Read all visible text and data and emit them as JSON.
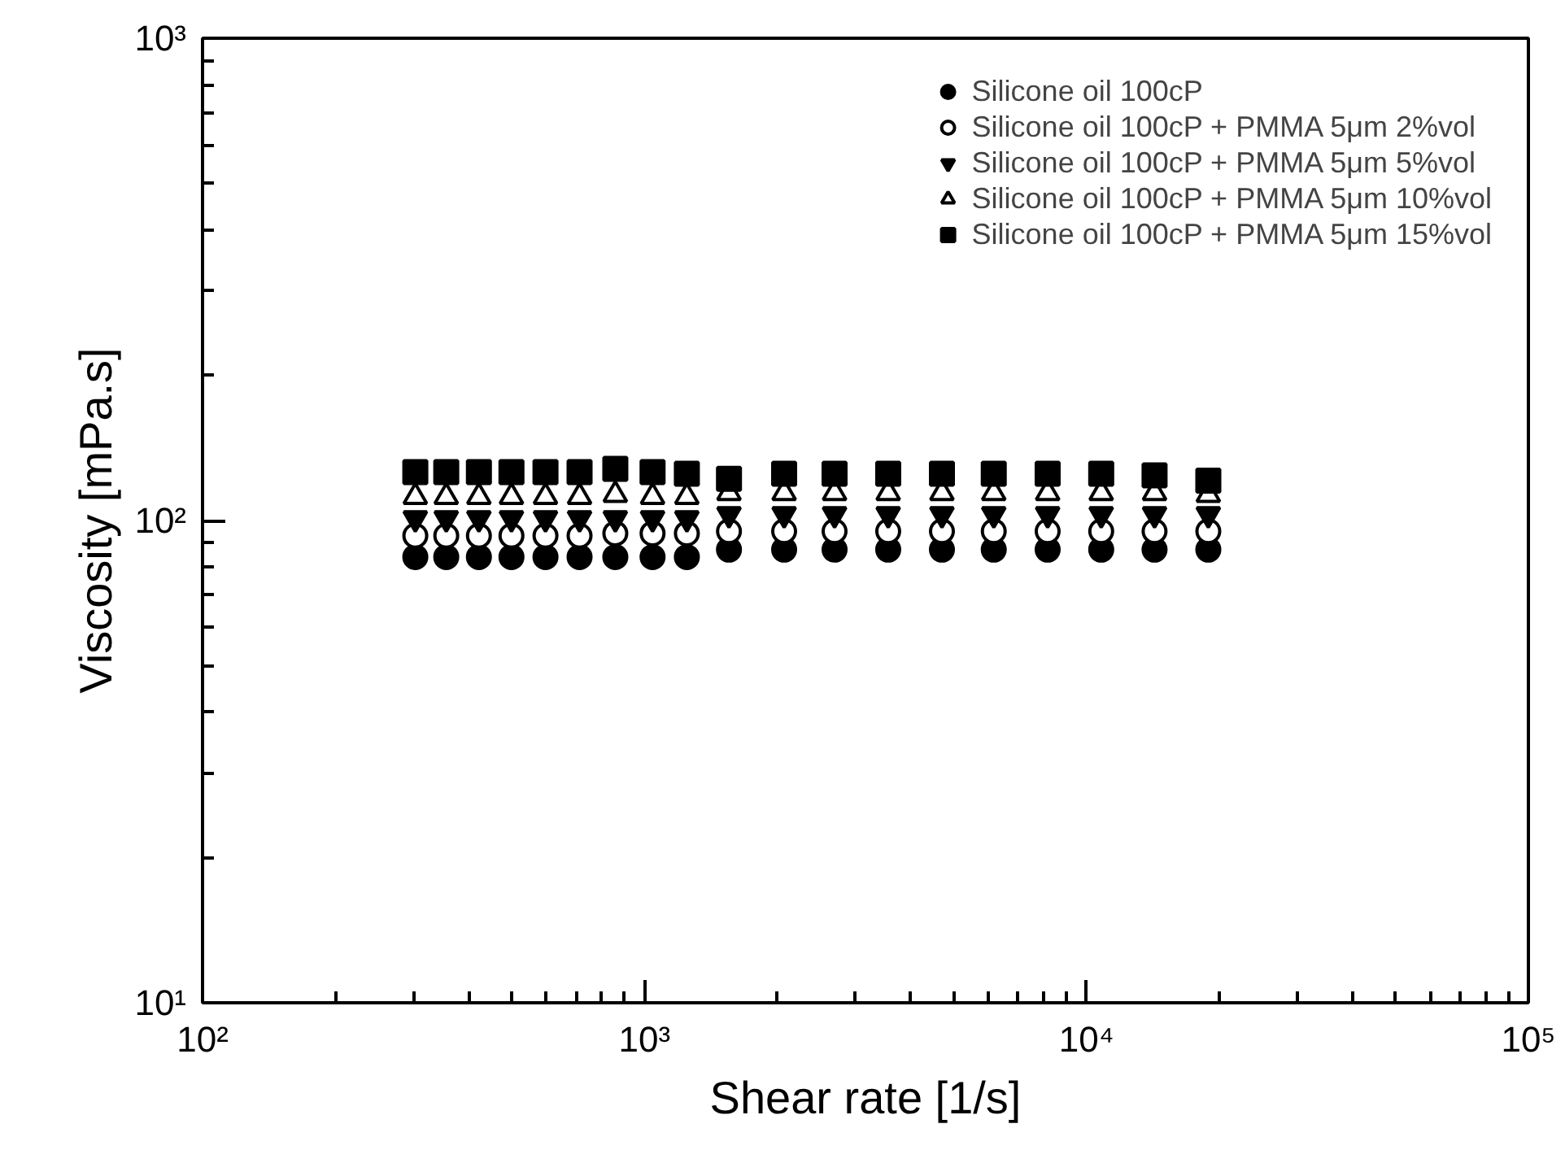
{
  "chart_data": {
    "type": "scatter",
    "xlabel": "Shear rate [1/s]",
    "ylabel": "Viscosity [mPa.s]",
    "log": "xy",
    "grid": false,
    "legend": "top right",
    "x": [
      303,
      356,
      422,
      500,
      597,
      713,
      859,
      1043,
      1247,
      1553,
      2070,
      2692,
      3560,
      4710,
      6170,
      8170,
      10800,
      14260,
      18870
    ],
    "xlim": [
      100,
      100000
    ],
    "xticks": [
      {
        "value": 100,
        "label": "10²"
      },
      {
        "value": 1000,
        "label": "10³"
      },
      {
        "value": 10000,
        "label": "10⁴"
      },
      {
        "value": 100000,
        "label": "10⁵"
      }
    ],
    "ylim": [
      10,
      1000
    ],
    "yticks": [
      {
        "value": 10,
        "label": "10¹"
      },
      {
        "value": 100,
        "label": "10²"
      },
      {
        "value": 1000,
        "label": "10³"
      }
    ],
    "series": [
      {
        "name": "Silicone oil 100cP",
        "color": "#000000",
        "marker": "circle",
        "values": [
          84,
          84,
          84,
          84,
          84,
          84,
          84,
          84,
          84,
          87,
          87,
          87,
          87,
          87,
          87,
          87,
          87,
          87,
          87
        ]
      },
      {
        "name": "Silicone oil 100cP + PMMA 5μm 2%vol",
        "color": "#000000",
        "marker": "circle_open",
        "values": [
          93,
          93,
          93,
          93,
          93,
          93,
          94,
          94,
          94,
          95,
          95,
          95,
          95,
          95,
          95,
          95,
          95,
          95,
          95
        ]
      },
      {
        "name": "Silicone oil 100cP + PMMA 5μm 5%vol",
        "color": "#000000",
        "marker": "triangle_down",
        "values": [
          101,
          101,
          101,
          101,
          101,
          101,
          101,
          101,
          101,
          103,
          103,
          103,
          103,
          103,
          103,
          103,
          103,
          103,
          103
        ]
      },
      {
        "name": "Silicone oil 100cP + PMMA 5μm 10%vol",
        "color": "#000000",
        "marker": "triangle_open",
        "values": [
          112,
          112,
          112,
          112,
          112,
          112,
          113,
          112,
          112,
          114,
          114,
          114,
          114,
          114,
          114,
          114,
          114,
          114,
          113
        ]
      },
      {
        "name": "Silicone oil 100cP + PMMA 5μm 15%vol",
        "color": "#000000",
        "marker": "square",
        "values": [
          126,
          126,
          126,
          126,
          126,
          126,
          128,
          126,
          125,
          122,
          125,
          125,
          125,
          125,
          125,
          125,
          125,
          124,
          121
        ]
      }
    ]
  }
}
